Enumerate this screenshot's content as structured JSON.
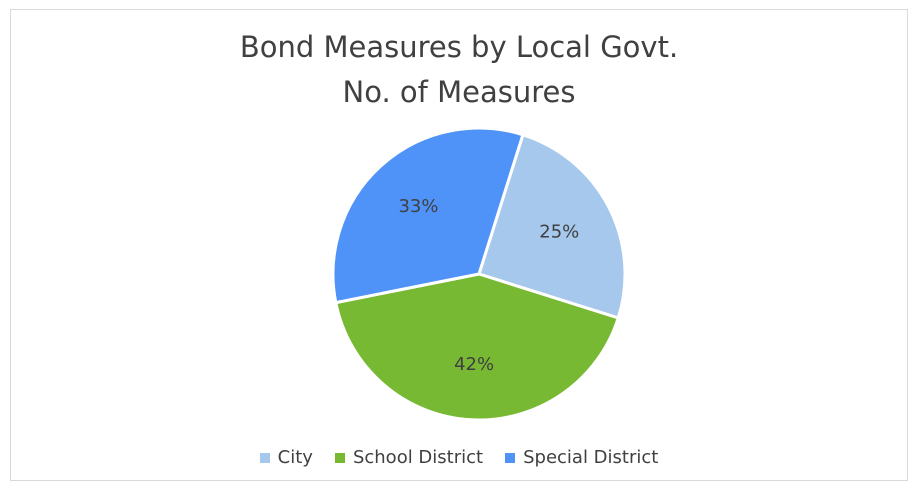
{
  "chart_data": {
    "type": "pie",
    "title": "Bond Measures by Local Govt.",
    "subtitle": "No. of Measures",
    "categories": [
      "City",
      "School District",
      "Special District"
    ],
    "values": [
      25,
      42,
      33
    ],
    "labels": [
      "25%",
      "42%",
      "33%"
    ],
    "colors": [
      "#a5c8ec",
      "#78b934",
      "#4f93f9"
    ],
    "legend_position": "bottom"
  }
}
